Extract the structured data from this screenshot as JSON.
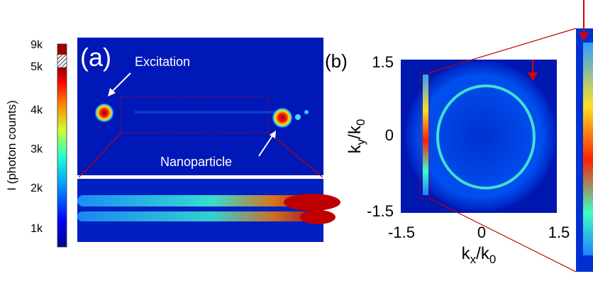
{
  "colorbar": {
    "label": "I (photon counts)",
    "ticks": [
      "9k",
      "5k",
      "4k",
      "3k",
      "2k",
      "1k"
    ]
  },
  "panel_a": {
    "label": "(a)",
    "annotations": [
      "Excitation",
      "Nanoparticle"
    ]
  },
  "panel_b": {
    "label": "(b)",
    "y_label": [
      "k",
      "y",
      "/k",
      "0"
    ],
    "x_label": [
      "k",
      "x",
      "/k",
      "0"
    ],
    "yticks": [
      "1.5",
      "0",
      "-1.5"
    ],
    "xticks": [
      "-1.5",
      "0",
      "1.5"
    ]
  }
}
